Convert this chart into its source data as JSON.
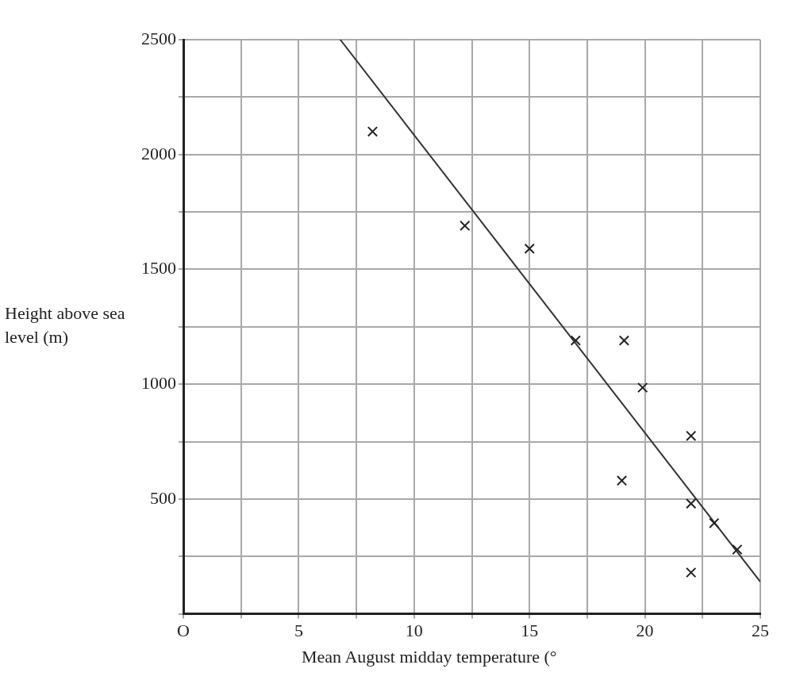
{
  "chart_data": {
    "type": "scatter",
    "xlabel": "Mean August midday temperature (°",
    "ylabel": "Height above sea level (m)",
    "series": [
      {
        "color": "#222222",
        "marker": "cross",
        "x": [
          8.2,
          12.2,
          15,
          17,
          19.1,
          19.9,
          22,
          19,
          22,
          23,
          24,
          22
        ],
        "values": [
          2100,
          1690,
          1590,
          1190,
          1190,
          985,
          775,
          580,
          480,
          395,
          280,
          180
        ]
      },
      {
        "type": "line",
        "color": "#333333",
        "marker": "none",
        "x": [
          6.8,
          25
        ],
        "values": [
          2500,
          140
        ]
      }
    ],
    "xlim": [
      0,
      25
    ],
    "ylim": [
      0,
      2500
    ],
    "xticks": [
      {
        "value": 0,
        "label": "O"
      },
      {
        "value": 2.5,
        "label": null
      },
      5,
      {
        "value": 7.5,
        "label": null
      },
      10,
      {
        "value": 12.5,
        "label": null
      },
      15,
      {
        "value": 17.5,
        "label": null
      },
      20,
      {
        "value": 22.5,
        "label": null
      },
      25
    ],
    "yticks": [
      {
        "value": 0,
        "label": null
      },
      {
        "value": 250,
        "label": null
      },
      500,
      {
        "value": 750,
        "label": null
      },
      1000,
      {
        "value": 1250,
        "label": null
      },
      1500,
      {
        "value": 1750,
        "label": null
      },
      2000,
      {
        "value": 2250,
        "label": null
      },
      2500
    ],
    "grid": true
  }
}
